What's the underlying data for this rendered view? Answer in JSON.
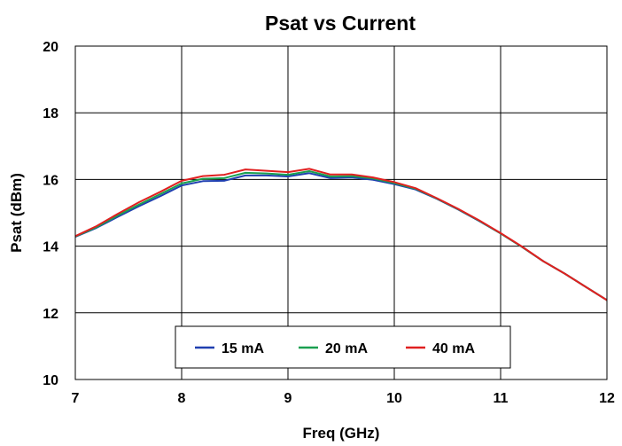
{
  "chart_data": {
    "type": "line",
    "title": "Psat vs Current",
    "xlabel": "Freq (GHz)",
    "ylabel": "Psat (dBm)",
    "xlim": [
      7,
      12
    ],
    "ylim": [
      10,
      20
    ],
    "xticks": [
      "7",
      "8",
      "9",
      "10",
      "11",
      "12"
    ],
    "yticks": [
      "10",
      "12",
      "14",
      "16",
      "18",
      "20"
    ],
    "grid": true,
    "legend_position": "bottom-center",
    "series": [
      {
        "name": "15 mA",
        "color": "#1f3fb0",
        "x": [
          7.0,
          7.2,
          7.4,
          7.6,
          7.8,
          8.0,
          8.2,
          8.4,
          8.6,
          8.8,
          9.0,
          9.2,
          9.4,
          9.6,
          9.8,
          10.0,
          10.2,
          10.4,
          10.6,
          10.8,
          11.0,
          11.2,
          11.4,
          11.6,
          11.8,
          12.0
        ],
        "values": [
          14.28,
          14.55,
          14.88,
          15.2,
          15.5,
          15.82,
          15.95,
          15.96,
          16.12,
          16.12,
          16.09,
          16.19,
          16.04,
          16.06,
          15.99,
          15.86,
          15.7,
          15.42,
          15.1,
          14.75,
          14.38,
          13.98,
          13.55,
          13.18,
          12.78,
          12.38
        ]
      },
      {
        "name": "20 mA",
        "color": "#1aa050",
        "x": [
          7.0,
          7.2,
          7.4,
          7.6,
          7.8,
          8.0,
          8.2,
          8.4,
          8.6,
          8.8,
          9.0,
          9.2,
          9.4,
          9.6,
          9.8,
          10.0,
          10.2,
          10.4,
          10.6,
          10.8,
          11.0,
          11.2,
          11.4,
          11.6,
          11.8,
          12.0
        ],
        "values": [
          14.29,
          14.57,
          14.92,
          15.25,
          15.56,
          15.88,
          16.02,
          16.04,
          16.2,
          16.18,
          16.14,
          16.25,
          16.09,
          16.1,
          16.03,
          15.89,
          15.72,
          15.43,
          15.11,
          14.76,
          14.38,
          13.98,
          13.55,
          13.18,
          12.78,
          12.38
        ]
      },
      {
        "name": "40 mA",
        "color": "#e02020",
        "x": [
          7.0,
          7.2,
          7.4,
          7.6,
          7.8,
          8.0,
          8.2,
          8.4,
          8.6,
          8.8,
          9.0,
          9.2,
          9.4,
          9.6,
          9.8,
          10.0,
          10.2,
          10.4,
          10.6,
          10.8,
          11.0,
          11.2,
          11.4,
          11.6,
          11.8,
          12.0
        ],
        "values": [
          14.3,
          14.6,
          14.97,
          15.32,
          15.63,
          15.96,
          16.1,
          16.14,
          16.3,
          16.26,
          16.22,
          16.32,
          16.15,
          16.15,
          16.06,
          15.92,
          15.74,
          15.44,
          15.12,
          14.77,
          14.39,
          13.99,
          13.55,
          13.18,
          12.78,
          12.38
        ]
      }
    ]
  }
}
